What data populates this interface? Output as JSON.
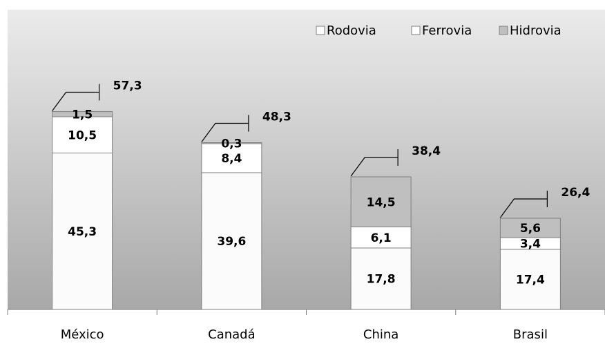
{
  "chart_data": {
    "type": "bar",
    "stacked": true,
    "categories": [
      "México",
      "Canadá",
      "China",
      "Brasil"
    ],
    "series": [
      {
        "name": "Rodovia",
        "values": [
          45.3,
          39.6,
          17.8,
          17.4
        ],
        "color": "#fbfbfb"
      },
      {
        "name": "Ferrovia",
        "values": [
          10.5,
          8.4,
          6.1,
          3.4
        ],
        "color": "#ffffff"
      },
      {
        "name": "Hidrovia",
        "values": [
          1.5,
          0.3,
          14.5,
          5.6
        ],
        "color": "#bfbfbf"
      }
    ],
    "segment_labels": [
      [
        "45,3",
        "39,6",
        "17,8",
        "17,4"
      ],
      [
        "10,5",
        "8,4",
        "6,1",
        "3,4"
      ],
      [
        "1,5",
        "0,3",
        "14,5",
        "5,6"
      ]
    ],
    "totals": [
      57.3,
      48.3,
      38.4,
      26.4
    ],
    "total_labels": [
      "57,3",
      "48,3",
      "38,4",
      "26,4"
    ],
    "ylim": [
      0,
      67.6
    ],
    "grid": false,
    "legend_position": "top-right",
    "background_gradient": [
      "#ebebeb",
      "#a8a8a8"
    ],
    "title": "",
    "xlabel": "",
    "ylabel": ""
  }
}
